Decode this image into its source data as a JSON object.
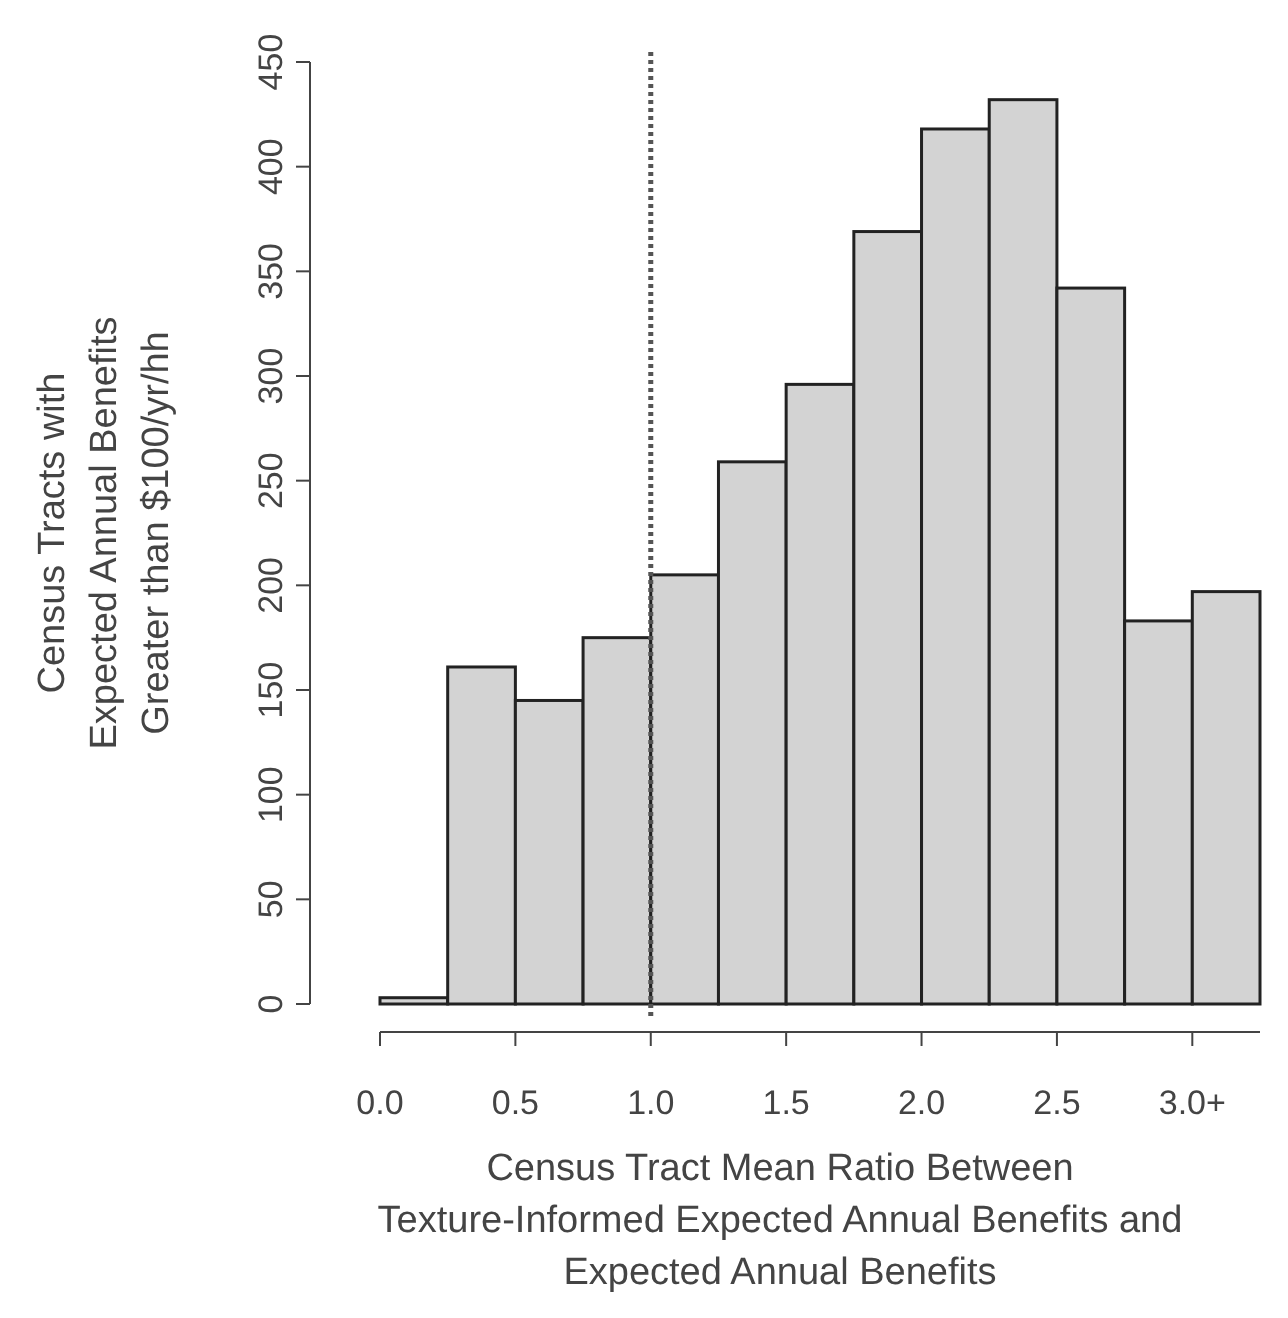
{
  "chart_data": {
    "type": "histogram",
    "xlabel": "Census Tract Mean Ratio Between\nTexture-Informed Expected Annual Benefits and\nExpected Annual Benefits",
    "ylabel": "Census Tracts with\nExpected Annual Benefits\nGreater than $100/yr/hh",
    "bins": [
      0,
      0.25,
      0.5,
      0.75,
      1,
      1.25,
      1.5,
      1.75,
      2,
      2.25,
      2.5,
      2.75,
      3,
      3.25
    ],
    "values": [
      3,
      161,
      145,
      175,
      205,
      259,
      296,
      369,
      418,
      432,
      342,
      183,
      197
    ],
    "color": "#d3d3d3",
    "xlim": [
      0,
      3.25
    ],
    "xticks": [
      {
        "value": 0,
        "label": "0.0"
      },
      {
        "value": 0.5,
        "label": "0.5"
      },
      {
        "value": 1,
        "label": "1.0"
      },
      {
        "value": 1.5,
        "label": "1.5"
      },
      {
        "value": 2,
        "label": "2.0"
      },
      {
        "value": 2.5,
        "label": "2.5"
      },
      {
        "value": 3,
        "label": "3.0+"
      }
    ],
    "ylim": [
      0,
      450
    ],
    "yticks": [
      0,
      50,
      100,
      150,
      200,
      250,
      300,
      350,
      400,
      450
    ],
    "ref_lines": [
      {
        "axis": "x",
        "value": 1,
        "line_style": "dotted",
        "color": "#555555"
      }
    ]
  }
}
